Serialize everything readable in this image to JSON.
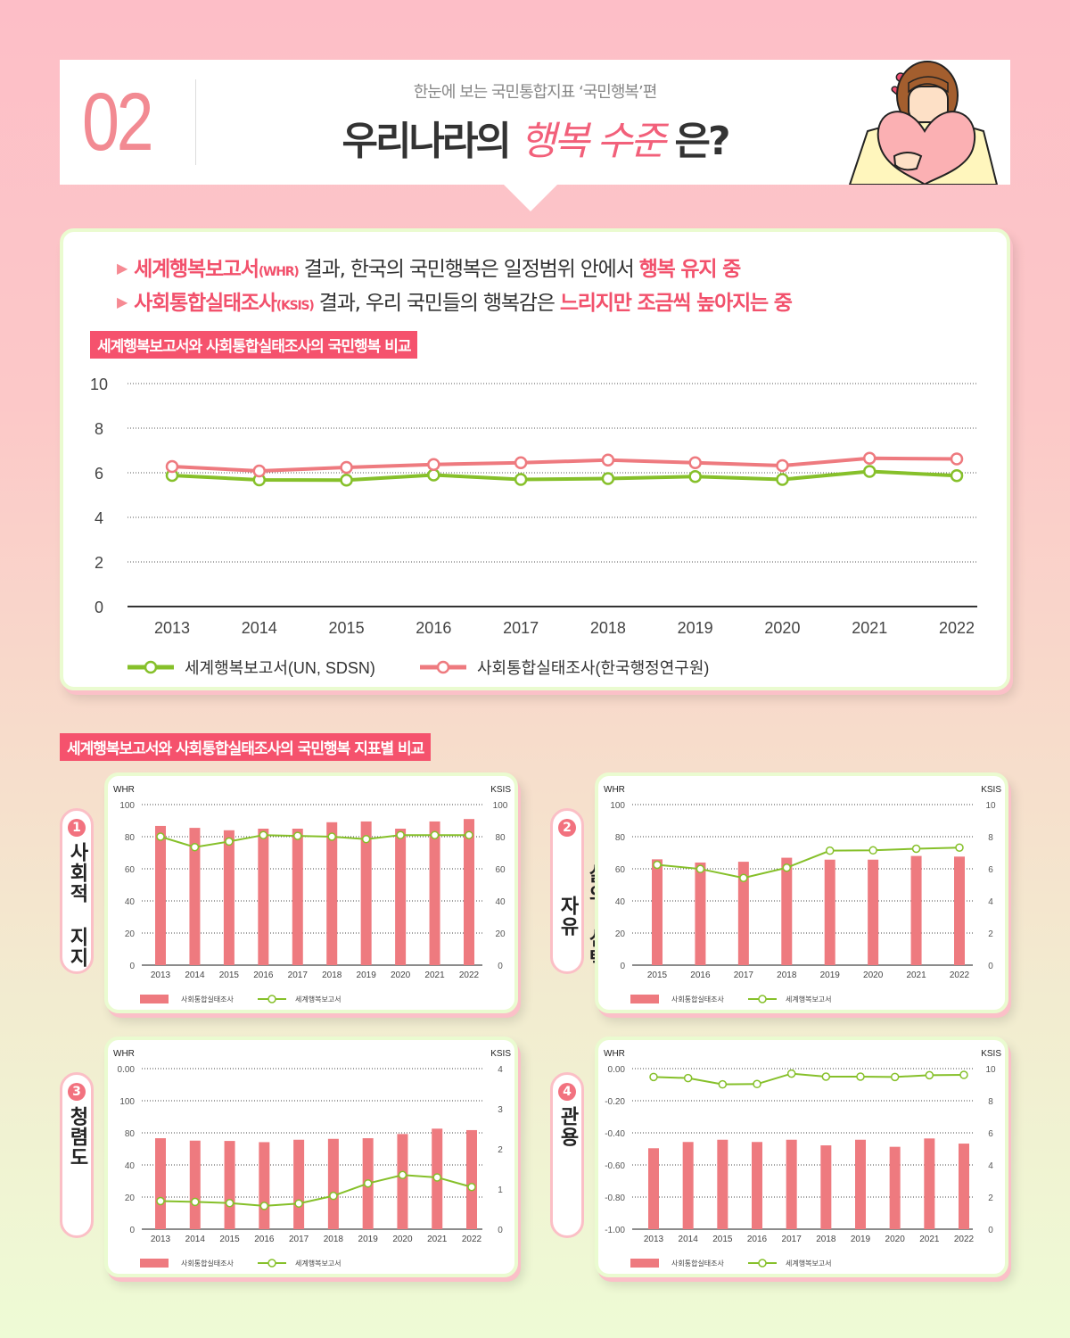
{
  "header": {
    "number": "02",
    "subtitle": "한눈에 보는 국민통합지표 ‘국민행복’편",
    "title_prefix": "우리나라의 ",
    "title_highlight": "행복 수준",
    "title_suffix": " 은?"
  },
  "summary": {
    "bullets": [
      {
        "em": "세계행복보고서",
        "small": "(WHR)",
        "text": " 결과, 한국의 국민행복은 일정범위 안에서 ",
        "em2": "행복 유지 중"
      },
      {
        "em": "사회통합실태조사",
        "small": "(KSIS)",
        "text": " 결과, 우리 국민들의 행복감은 ",
        "em2": "느리지만 조금씩 높아지는 중"
      }
    ]
  },
  "section_tags": {
    "main_chart": "세계행복보고서와 사회통합실태조사의 국민행복 비교",
    "indicator_charts": "세계행복보고서와 사회통합실태조사의 국민행복 지표별 비교"
  },
  "colors": {
    "ksis_pink": "#ee7a7f",
    "whr_green": "#86c02a",
    "tag_bg": "#f5526d",
    "accent_text": "#f2516c"
  },
  "chart_data": [
    {
      "id": "main",
      "type": "line",
      "title": "세계행복보고서와 사회통합실태조사의 국민행복 비교",
      "categories": [
        "2013",
        "2014",
        "2015",
        "2016",
        "2017",
        "2018",
        "2019",
        "2020",
        "2021",
        "2022"
      ],
      "yticks": [
        "0",
        "2",
        "4",
        "6",
        "8",
        "10"
      ],
      "ylim": [
        0,
        10
      ],
      "grid": true,
      "legend_position": "bottom",
      "series": [
        {
          "name": "세계행복보고서(UN, SDSN)",
          "color": "#86c02a",
          "values": [
            5.88,
            5.68,
            5.67,
            5.9,
            5.7,
            5.74,
            5.83,
            5.7,
            6.06,
            5.87
          ]
        },
        {
          "name": "사회통합실태조사(한국행정연구원)",
          "color": "#ee7a7f",
          "values": [
            6.28,
            6.08,
            6.24,
            6.37,
            6.45,
            6.57,
            6.45,
            6.32,
            6.65,
            6.62
          ]
        }
      ]
    },
    {
      "id": "social-support",
      "index": "1",
      "label": "사회적 지지",
      "type": "bar+line",
      "left_axis_title": "WHR",
      "right_axis_title": "KSIS",
      "categories": [
        "2013",
        "2014",
        "2015",
        "2016",
        "2017",
        "2018",
        "2019",
        "2020",
        "2021",
        "2022"
      ],
      "left_ticks": [
        "0",
        "20",
        "40",
        "60",
        "80",
        "100"
      ],
      "right_ticks": [
        "0",
        "20",
        "40",
        "60",
        "80",
        "100"
      ],
      "ylim": [
        0,
        100
      ],
      "grid": true,
      "series": [
        {
          "name": "사회통합실태조사",
          "kind": "bar",
          "color": "#ee7a7f",
          "values": [
            86.7,
            85.5,
            84.0,
            85.0,
            85.0,
            89.0,
            89.5,
            85.0,
            89.5,
            91.0
          ]
        },
        {
          "name": "세계행복보고서",
          "kind": "line",
          "color": "#86c02a",
          "values": [
            80.0,
            73.5,
            77.0,
            81.0,
            80.5,
            80.0,
            78.5,
            81.0,
            81.0,
            81.0
          ]
        }
      ]
    },
    {
      "id": "freedom-of-choice",
      "index": "2",
      "label": "삶의 선택 자유",
      "type": "bar+line",
      "left_axis_title": "WHR",
      "right_axis_title": "KSIS",
      "categories": [
        "2015",
        "2016",
        "2017",
        "2018",
        "2019",
        "2020",
        "2021",
        "2022"
      ],
      "left_ticks": [
        "0",
        "20",
        "40",
        "60",
        "80",
        "100"
      ],
      "right_ticks": [
        "0",
        "2",
        "4",
        "6",
        "8",
        "10"
      ],
      "ylim_left": [
        0,
        100
      ],
      "ylim_right": [
        0,
        10
      ],
      "grid": true,
      "series": [
        {
          "name": "사회통합실태조사",
          "kind": "bar",
          "axis": "left",
          "color": "#ee7a7f",
          "values": [
            65.9,
            63.9,
            64.4,
            66.9,
            65.7,
            65.7,
            68.0,
            67.6
          ]
        },
        {
          "name": "세계행복보고서",
          "kind": "line",
          "axis": "right",
          "color": "#86c02a",
          "values": [
            6.25,
            5.99,
            5.43,
            6.07,
            7.13,
            7.15,
            7.25,
            7.32
          ]
        }
      ]
    },
    {
      "id": "integrity",
      "index": "3",
      "label": "청렴도",
      "type": "bar+line",
      "left_axis_title": "WHR",
      "right_axis_title": "KSIS",
      "categories": [
        "2013",
        "2014",
        "2015",
        "2016",
        "2017",
        "2018",
        "2019",
        "2020",
        "2021",
        "2022"
      ],
      "left_ticks": [
        "0",
        "20",
        "40",
        "80",
        "100",
        "0.00"
      ],
      "right_ticks": [
        "0",
        "1",
        "2",
        "3",
        "4"
      ],
      "ylim_right": [
        0,
        4
      ],
      "grid": true,
      "series": [
        {
          "name": "사회통합실태조사",
          "kind": "bar",
          "axis": "left",
          "color": "#ee7a7f",
          "values": [
            73.3,
            70.3,
            69.9,
            68.4,
            71.4,
            72.5,
            73.3,
            78.5,
            85.2,
            83.4
          ]
        },
        {
          "name": "세계행복보고서",
          "kind": "line",
          "axis": "right",
          "color": "#86c02a",
          "values": [
            0.7,
            0.68,
            0.65,
            0.58,
            0.64,
            0.83,
            1.14,
            1.35,
            1.29,
            1.05
          ]
        }
      ]
    },
    {
      "id": "generosity",
      "index": "4",
      "label": "관용",
      "type": "bar+line",
      "left_axis_title": "WHR",
      "right_axis_title": "KSIS",
      "categories": [
        "2013",
        "2014",
        "2015",
        "2016",
        "2017",
        "2018",
        "2019",
        "2020",
        "2021",
        "2022"
      ],
      "left_ticks": [
        "-1.00",
        "-0.80",
        "-0.60",
        "-0.40",
        "-0.20",
        "0.00"
      ],
      "right_ticks": [
        "0",
        "2",
        "4",
        "6",
        "8",
        "10"
      ],
      "ylim_left": [
        -1.0,
        0.0
      ],
      "ylim_right": [
        0,
        10
      ],
      "grid": true,
      "series": [
        {
          "name": "사회통합실태조사",
          "kind": "bar",
          "axis": "right",
          "color": "#ee7a7f",
          "values": [
            5.04,
            5.43,
            5.57,
            5.43,
            5.57,
            5.22,
            5.57,
            5.13,
            5.65,
            5.33
          ]
        },
        {
          "name": "세계행복보고서",
          "kind": "line",
          "axis": "left",
          "color": "#86c02a",
          "values": [
            -0.052,
            -0.059,
            -0.098,
            -0.096,
            -0.031,
            -0.05,
            -0.05,
            -0.052,
            -0.041,
            -0.039
          ]
        }
      ]
    }
  ]
}
